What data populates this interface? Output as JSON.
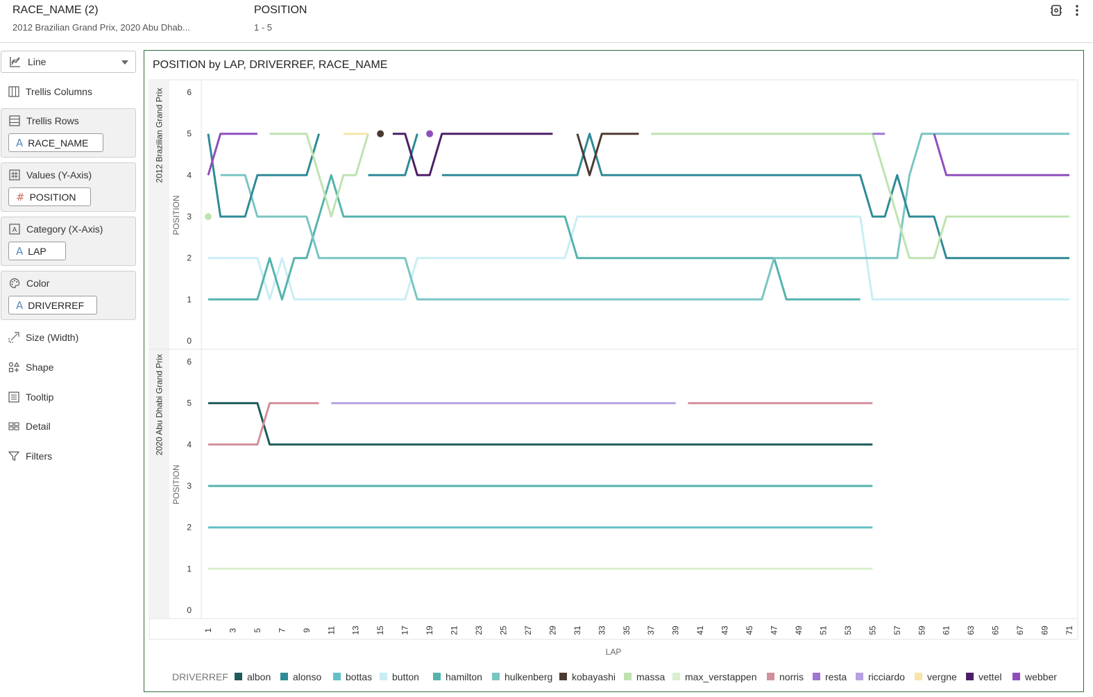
{
  "filters": [
    {
      "title": "RACE_NAME (2)",
      "value": "2012 Brazilian Grand Prix, 2020 Abu Dhab..."
    },
    {
      "title": "POSITION",
      "value": "1 - 5"
    }
  ],
  "top_icons": [
    "settings-icon",
    "more-vertical-icon"
  ],
  "panel": {
    "viz_type": "Line",
    "trellis_columns": "Trellis Columns",
    "trellis_rows": {
      "label": "Trellis Rows",
      "pill": "RACE_NAME",
      "pill_type": "A"
    },
    "values": {
      "label": "Values (Y-Axis)",
      "pill": "POSITION",
      "pill_type": "#"
    },
    "category": {
      "label": "Category (X-Axis)",
      "pill": "LAP",
      "pill_type": "A"
    },
    "color": {
      "label": "Color",
      "pill": "DRIVERREF",
      "pill_type": "A"
    },
    "size": "Size (Width)",
    "shape": "Shape",
    "tooltip": "Tooltip",
    "detail": "Detail",
    "filters": "Filters"
  },
  "chart_data": {
    "type": "line",
    "title": "POSITION by LAP, DRIVERREF, RACE_NAME",
    "xlabel": "LAP",
    "ylabel": "POSITION",
    "legend_title": "DRIVERREF",
    "legend_position": "bottom",
    "xlim": [
      1,
      71
    ],
    "ylim": [
      0,
      6
    ],
    "x_ticks": [
      1,
      3,
      5,
      7,
      9,
      11,
      13,
      15,
      17,
      19,
      21,
      23,
      25,
      27,
      29,
      31,
      33,
      35,
      37,
      39,
      41,
      43,
      45,
      47,
      49,
      51,
      53,
      55,
      57,
      59,
      61,
      63,
      65,
      67,
      69,
      71
    ],
    "y_ticks": [
      0,
      1,
      2,
      3,
      4,
      5,
      6
    ],
    "drivers": [
      {
        "name": "albon",
        "color": "#1e5a5a"
      },
      {
        "name": "alonso",
        "color": "#2e8a96"
      },
      {
        "name": "bottas",
        "color": "#62c0c6"
      },
      {
        "name": "button",
        "color": "#c9eef4"
      },
      {
        "name": "hamilton",
        "color": "#55b3ad"
      },
      {
        "name": "hulkenberg",
        "color": "#79c5c3"
      },
      {
        "name": "kobayashi",
        "color": "#4a3a32"
      },
      {
        "name": "massa",
        "color": "#bfe3b0"
      },
      {
        "name": "max_verstappen",
        "color": "#d9efcf"
      },
      {
        "name": "norris",
        "color": "#d28f9c"
      },
      {
        "name": "resta",
        "color": "#9f76d2"
      },
      {
        "name": "ricciardo",
        "color": "#b7a1e2"
      },
      {
        "name": "vergne",
        "color": "#f8e3a8"
      },
      {
        "name": "vettel",
        "color": "#4b1f66"
      },
      {
        "name": "webber",
        "color": "#8e4fbd"
      }
    ],
    "panels": [
      {
        "race": "2012 Brazilian Grand Prix",
        "series": [
          {
            "name": "button",
            "segments": [
              [
                [
                  1,
                  2
                ],
                [
                  5,
                  2
                ],
                [
                  6,
                  1
                ],
                [
                  7,
                  2
                ],
                [
                  8,
                  1
                ],
                [
                  17,
                  1
                ],
                [
                  18,
                  2
                ],
                [
                  30,
                  2
                ],
                [
                  31,
                  3
                ],
                [
                  54,
                  3
                ],
                [
                  55,
                  1
                ],
                [
                  71,
                  1
                ]
              ]
            ]
          },
          {
            "name": "hamilton",
            "segments": [
              [
                [
                  1,
                  1
                ],
                [
                  5,
                  1
                ],
                [
                  6,
                  2
                ],
                [
                  7,
                  1
                ],
                [
                  8,
                  2
                ],
                [
                  9,
                  2
                ],
                [
                  10,
                  3
                ],
                [
                  11,
                  4
                ],
                [
                  12,
                  3
                ],
                [
                  30,
                  3
                ],
                [
                  31,
                  2
                ],
                [
                  47,
                  2
                ],
                [
                  48,
                  1
                ],
                [
                  54,
                  1
                ]
              ]
            ]
          },
          {
            "name": "hulkenberg",
            "segments": [
              [
                [
                  2,
                  4
                ],
                [
                  4,
                  4
                ],
                [
                  5,
                  3
                ],
                [
                  9,
                  3
                ],
                [
                  10,
                  2
                ],
                [
                  17,
                  2
                ],
                [
                  18,
                  1
                ],
                [
                  46,
                  1
                ],
                [
                  47,
                  2
                ],
                [
                  57,
                  2
                ],
                [
                  58,
                  4
                ],
                [
                  59,
                  5
                ],
                [
                  71,
                  5
                ]
              ]
            ]
          },
          {
            "name": "alonso",
            "segments": [
              [
                [
                  1,
                  5
                ],
                [
                  2,
                  3
                ],
                [
                  4,
                  3
                ],
                [
                  5,
                  4
                ],
                [
                  9,
                  4
                ],
                [
                  10,
                  5
                ]
              ],
              [
                [
                  14,
                  4
                ],
                [
                  17,
                  4
                ],
                [
                  18,
                  5
                ]
              ],
              [
                [
                  20,
                  4
                ],
                [
                  31,
                  4
                ],
                [
                  32,
                  5
                ],
                [
                  33,
                  4
                ],
                [
                  54,
                  4
                ],
                [
                  55,
                  3
                ],
                [
                  56,
                  3
                ],
                [
                  57,
                  4
                ],
                [
                  58,
                  3
                ],
                [
                  60,
                  3
                ],
                [
                  61,
                  2
                ],
                [
                  71,
                  2
                ]
              ]
            ]
          },
          {
            "name": "massa",
            "segments": [
              [
                [
                  6,
                  5
                ],
                [
                  9,
                  5
                ],
                [
                  10,
                  4
                ],
                [
                  11,
                  3
                ],
                [
                  12,
                  4
                ],
                [
                  13,
                  4
                ],
                [
                  14,
                  5
                ]
              ],
              [
                [
                  37,
                  5
                ],
                [
                  55,
                  5
                ],
                [
                  56,
                  4
                ],
                [
                  57,
                  3
                ],
                [
                  58,
                  2
                ],
                [
                  60,
                  2
                ],
                [
                  61,
                  3
                ],
                [
                  71,
                  3
                ]
              ]
            ]
          },
          {
            "name": "webber",
            "segments": [
              [
                [
                  1,
                  4
                ],
                [
                  2,
                  5
                ],
                [
                  5,
                  5
                ]
              ],
              [
                [
                  60,
                  5
                ],
                [
                  61,
                  4
                ],
                [
                  71,
                  4
                ]
              ]
            ]
          },
          {
            "name": "vettel",
            "segments": [
              [
                [
                  16,
                  5
                ],
                [
                  17,
                  5
                ],
                [
                  18,
                  4
                ],
                [
                  19,
                  4
                ],
                [
                  20,
                  5
                ],
                [
                  29,
                  5
                ]
              ]
            ]
          },
          {
            "name": "kobayashi",
            "segments": [
              [
                [
                  31,
                  5
                ],
                [
                  32,
                  4
                ],
                [
                  33,
                  5
                ],
                [
                  36,
                  5
                ]
              ]
            ]
          },
          {
            "name": "vergne",
            "segments": [
              [
                [
                  12,
                  5
                ],
                [
                  14,
                  5
                ]
              ]
            ]
          },
          {
            "name": "resta",
            "segments": [
              [
                [
                  55,
                  5
                ],
                [
                  56,
                  5
                ]
              ]
            ]
          }
        ],
        "points": [
          {
            "name": "massa",
            "x": 1,
            "y": 3
          },
          {
            "name": "kobayashi",
            "x": 15,
            "y": 5
          },
          {
            "name": "webber",
            "x": 19,
            "y": 5
          }
        ]
      },
      {
        "race": "2020 Abu Dhabi Grand Prix",
        "series": [
          {
            "name": "max_verstappen",
            "segments": [
              [
                [
                  1,
                  1
                ],
                [
                  55,
                  1
                ]
              ]
            ]
          },
          {
            "name": "bottas",
            "segments": [
              [
                [
                  1,
                  2
                ],
                [
                  55,
                  2
                ]
              ]
            ]
          },
          {
            "name": "hamilton",
            "segments": [
              [
                [
                  1,
                  3
                ],
                [
                  55,
                  3
                ]
              ]
            ]
          },
          {
            "name": "albon",
            "segments": [
              [
                [
                  1,
                  5
                ],
                [
                  5,
                  5
                ],
                [
                  6,
                  4
                ],
                [
                  55,
                  4
                ]
              ]
            ]
          },
          {
            "name": "norris",
            "segments": [
              [
                [
                  1,
                  4
                ],
                [
                  5,
                  4
                ],
                [
                  6,
                  5
                ],
                [
                  10,
                  5
                ]
              ],
              [
                [
                  40,
                  5
                ],
                [
                  55,
                  5
                ]
              ]
            ]
          },
          {
            "name": "ricciardo",
            "segments": [
              [
                [
                  11,
                  5
                ],
                [
                  39,
                  5
                ]
              ]
            ]
          }
        ],
        "points": []
      }
    ]
  }
}
